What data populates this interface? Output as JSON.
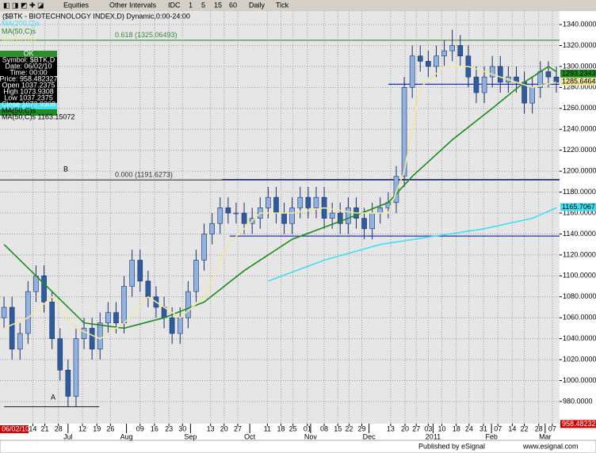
{
  "toolbar": {
    "items": [
      "Equities",
      "Other Intervals",
      "IDC",
      "1",
      "5",
      "15",
      "60",
      "Daily",
      "Tick"
    ]
  },
  "data_window": {
    "header": "OK",
    "rows": [
      "Symbol: $BTK,D",
      "Date: 06/02/10",
      "Time: 00:00",
      "Price: 958.482327",
      "Open 1037.2375",
      "High 1073.9308",
      "Low 1037.2375",
      "Close 1073.9308",
      "MA(50,C)s",
      "MA(50,C)s 1163.15072"
    ]
  },
  "footer": {
    "publisher": "Published by eSignal",
    "url": "www.esignal.com"
  },
  "chart_data": {
    "type": "candlestick",
    "title": "($BTK - BIOTECHNOLOGY INDEX,D) Dynamic,0:00-24:00",
    "cursor_date": "06/02/10",
    "up_color": "#8fb3de",
    "down_color": "#2f5d9b",
    "outline_color": "#1a2f6e",
    "open": [
      1060,
      1070,
      1030,
      1045,
      1085,
      1100,
      1075,
      1040,
      1010,
      985,
      1040,
      1050,
      1030,
      1055,
      1065,
      1055,
      1090,
      1115,
      1095,
      1080,
      1070,
      1060,
      1045,
      1060,
      1085,
      1115,
      1140,
      1150,
      1165,
      1160,
      1160,
      1150,
      1155,
      1165,
      1175,
      1160,
      1150,
      1165,
      1175,
      1165,
      1175,
      1155,
      1160,
      1150,
      1165,
      1155,
      1145,
      1160,
      1165,
      1170,
      1195,
      1280,
      1310,
      1305,
      1300,
      1310,
      1315,
      1320,
      1310,
      1290,
      1275,
      1290,
      1300,
      1285,
      1290,
      1285,
      1265,
      1280,
      1295,
      1290
    ],
    "high": [
      1080,
      1080,
      1055,
      1095,
      1110,
      1110,
      1085,
      1050,
      1020,
      1050,
      1060,
      1060,
      1065,
      1075,
      1075,
      1100,
      1125,
      1125,
      1105,
      1090,
      1080,
      1070,
      1070,
      1095,
      1125,
      1150,
      1160,
      1175,
      1175,
      1170,
      1170,
      1165,
      1175,
      1185,
      1185,
      1170,
      1175,
      1185,
      1185,
      1185,
      1185,
      1170,
      1170,
      1175,
      1175,
      1165,
      1170,
      1175,
      1180,
      1205,
      1290,
      1320,
      1320,
      1315,
      1320,
      1325,
      1335,
      1330,
      1320,
      1300,
      1300,
      1310,
      1310,
      1300,
      1300,
      1295,
      1290,
      1305,
      1305,
      1300
    ],
    "low": [
      1050,
      1020,
      1020,
      1035,
      1075,
      1065,
      1030,
      1000,
      975,
      975,
      1030,
      1020,
      1020,
      1045,
      1045,
      1045,
      1080,
      1085,
      1070,
      1060,
      1050,
      1035,
      1035,
      1050,
      1075,
      1105,
      1130,
      1140,
      1150,
      1150,
      1140,
      1140,
      1145,
      1155,
      1150,
      1140,
      1140,
      1155,
      1155,
      1155,
      1145,
      1145,
      1140,
      1140,
      1145,
      1135,
      1135,
      1150,
      1155,
      1160,
      1185,
      1270,
      1295,
      1290,
      1290,
      1300,
      1305,
      1300,
      1280,
      1265,
      1265,
      1280,
      1275,
      1275,
      1275,
      1255,
      1255,
      1270,
      1280,
      1275
    ],
    "close": [
      1070,
      1030,
      1045,
      1085,
      1100,
      1075,
      1040,
      1010,
      985,
      1040,
      1050,
      1030,
      1055,
      1065,
      1055,
      1090,
      1115,
      1095,
      1080,
      1070,
      1060,
      1045,
      1060,
      1085,
      1115,
      1140,
      1150,
      1165,
      1160,
      1160,
      1150,
      1155,
      1165,
      1175,
      1160,
      1150,
      1165,
      1175,
      1165,
      1175,
      1155,
      1160,
      1150,
      1165,
      1155,
      1145,
      1160,
      1165,
      1170,
      1195,
      1280,
      1310,
      1305,
      1300,
      1310,
      1315,
      1320,
      1310,
      1290,
      1275,
      1290,
      1300,
      1285,
      1290,
      1285,
      1265,
      1280,
      1295,
      1290,
      1285
    ],
    "series": [
      {
        "name": "MA(200,C)s",
        "color": "#40e0f0",
        "x": [
          33,
          40,
          47,
          53,
          60,
          66,
          69
        ],
        "values": [
          1095,
          1115,
          1130,
          1137,
          1145,
          1155,
          1165
        ]
      },
      {
        "name": "MA(50,C)s",
        "color": "#1f8a1f",
        "x": [
          0,
          4,
          10,
          15,
          20,
          25,
          30,
          36,
          43,
          48,
          51,
          56,
          61,
          65,
          68,
          69
        ],
        "values": [
          1130,
          1100,
          1055,
          1050,
          1060,
          1075,
          1105,
          1135,
          1155,
          1170,
          1195,
          1230,
          1260,
          1285,
          1300,
          1295
        ]
      },
      {
        "name": "MA(10,C)s",
        "color": "#f0e8a0",
        "x": [
          0,
          3,
          6,
          9,
          12,
          15,
          18,
          22,
          25,
          28,
          32,
          36,
          40,
          44,
          48,
          50,
          52,
          55,
          58,
          62,
          66,
          69
        ],
        "values": [
          1050,
          1060,
          1080,
          1050,
          1040,
          1055,
          1080,
          1060,
          1080,
          1130,
          1160,
          1160,
          1165,
          1160,
          1160,
          1200,
          1280,
          1300,
          1300,
          1290,
          1280,
          1285
        ]
      }
    ],
    "lines": [
      {
        "label": "0.618 (1325.06493)",
        "value": 1325.06493,
        "x0": -0.5,
        "x1": 69.4,
        "color": "#3a8a3a"
      },
      {
        "label": "0.000 (1191.6273)",
        "value": 1191.6273,
        "x0": -0.5,
        "x1": 69.4,
        "color": "#333333"
      },
      {
        "value": 1192,
        "x0": 27.2,
        "x1": 69.4,
        "color": "#101070"
      },
      {
        "value": 1138,
        "x0": 28.2,
        "x1": 69.4,
        "color": "#2030c0"
      },
      {
        "value": 1283,
        "x0": 48.0,
        "x1": 69.4,
        "color": "#2030c0"
      },
      {
        "value": 975,
        "x0": 0,
        "x1": 11.9,
        "color": "#333333"
      }
    ],
    "annotations": [
      "A",
      "B"
    ],
    "price_boxes": [
      {
        "value": 958.482327,
        "color": "#cc0000"
      },
      {
        "value": 1165.7067,
        "color": "#40e0f0"
      },
      {
        "value": 1293.2343,
        "color": "#1f8a1f"
      },
      {
        "value": 1285.6464,
        "color": "#f0e8a0"
      }
    ],
    "xlim": [
      -0.5,
      69.4
    ],
    "ylim": [
      958.8,
      1352.9
    ],
    "yticks": [
      {
        "value": 980,
        "label": "980.0000"
      },
      {
        "value": 1000,
        "label": "1000.0000"
      },
      {
        "value": 1020,
        "label": "1020.0000"
      },
      {
        "value": 1040,
        "label": "1040.0000"
      },
      {
        "value": 1060,
        "label": "1060.0000"
      },
      {
        "value": 1080,
        "label": "1080.0000"
      },
      {
        "value": 1100,
        "label": "1100.0000"
      },
      {
        "value": 1120,
        "label": "1120.0000"
      },
      {
        "value": 1140,
        "label": "1140.0000"
      },
      {
        "value": 1160,
        "label": "1160.0000"
      },
      {
        "value": 1180,
        "label": "1180.0000"
      },
      {
        "value": 1200,
        "label": "1200.0000"
      },
      {
        "value": 1220,
        "label": "1220.0000"
      },
      {
        "value": 1240,
        "label": "1240.0000"
      },
      {
        "value": 1260,
        "label": "1260.0000"
      },
      {
        "value": 1280,
        "label": "1280.0000"
      },
      {
        "value": 1300,
        "label": "1300.0000"
      },
      {
        "value": 1320,
        "label": "1320.0000"
      },
      {
        "value": 1340,
        "label": "1340.0000"
      }
    ],
    "xticks": [
      {
        "value": 3.6,
        "label": "14"
      },
      {
        "value": 5.1,
        "label": "21"
      },
      {
        "value": 6.8,
        "label": "28"
      },
      {
        "value": 9.8,
        "label": "12"
      },
      {
        "value": 11.6,
        "label": "19"
      },
      {
        "value": 13.3,
        "label": "26"
      },
      {
        "value": 17.0,
        "label": "09"
      },
      {
        "value": 18.8,
        "label": "16"
      },
      {
        "value": 20.6,
        "label": "23"
      },
      {
        "value": 22.3,
        "label": "30"
      },
      {
        "value": 25.8,
        "label": "13"
      },
      {
        "value": 27.5,
        "label": "20"
      },
      {
        "value": 29.2,
        "label": "27"
      },
      {
        "value": 32.9,
        "label": "11"
      },
      {
        "value": 34.6,
        "label": "18"
      },
      {
        "value": 36.1,
        "label": "25"
      },
      {
        "value": 37.9,
        "label": "01"
      },
      {
        "value": 40.0,
        "label": "08"
      },
      {
        "value": 41.7,
        "label": "15"
      },
      {
        "value": 43.1,
        "label": "22"
      },
      {
        "value": 44.7,
        "label": "29"
      },
      {
        "value": 48.3,
        "label": "13"
      },
      {
        "value": 50.1,
        "label": "20"
      },
      {
        "value": 51.5,
        "label": "27"
      },
      {
        "value": 53.0,
        "label": "03"
      },
      {
        "value": 54.7,
        "label": "10"
      },
      {
        "value": 56.5,
        "label": "18"
      },
      {
        "value": 58.1,
        "label": "24"
      },
      {
        "value": 59.9,
        "label": "31"
      },
      {
        "value": 61.7,
        "label": "07"
      },
      {
        "value": 63.5,
        "label": "14"
      },
      {
        "value": 65.0,
        "label": "22"
      },
      {
        "value": 66.8,
        "label": "28"
      },
      {
        "value": 68.5,
        "label": "07"
      }
    ],
    "month_ticks": [
      {
        "value": 8.0,
        "label": "Jul"
      },
      {
        "value": 15.3,
        "label": "Aug"
      },
      {
        "value": 23.3,
        "label": "Sep"
      },
      {
        "value": 30.7,
        "label": "Oct"
      },
      {
        "value": 38.3,
        "label": "Nov"
      },
      {
        "value": 45.6,
        "label": "Dec"
      },
      {
        "value": 53.6,
        "label": "2011"
      },
      {
        "value": 60.9,
        "label": "Feb"
      },
      {
        "value": 67.6,
        "label": "Mar"
      }
    ],
    "grid": true
  }
}
